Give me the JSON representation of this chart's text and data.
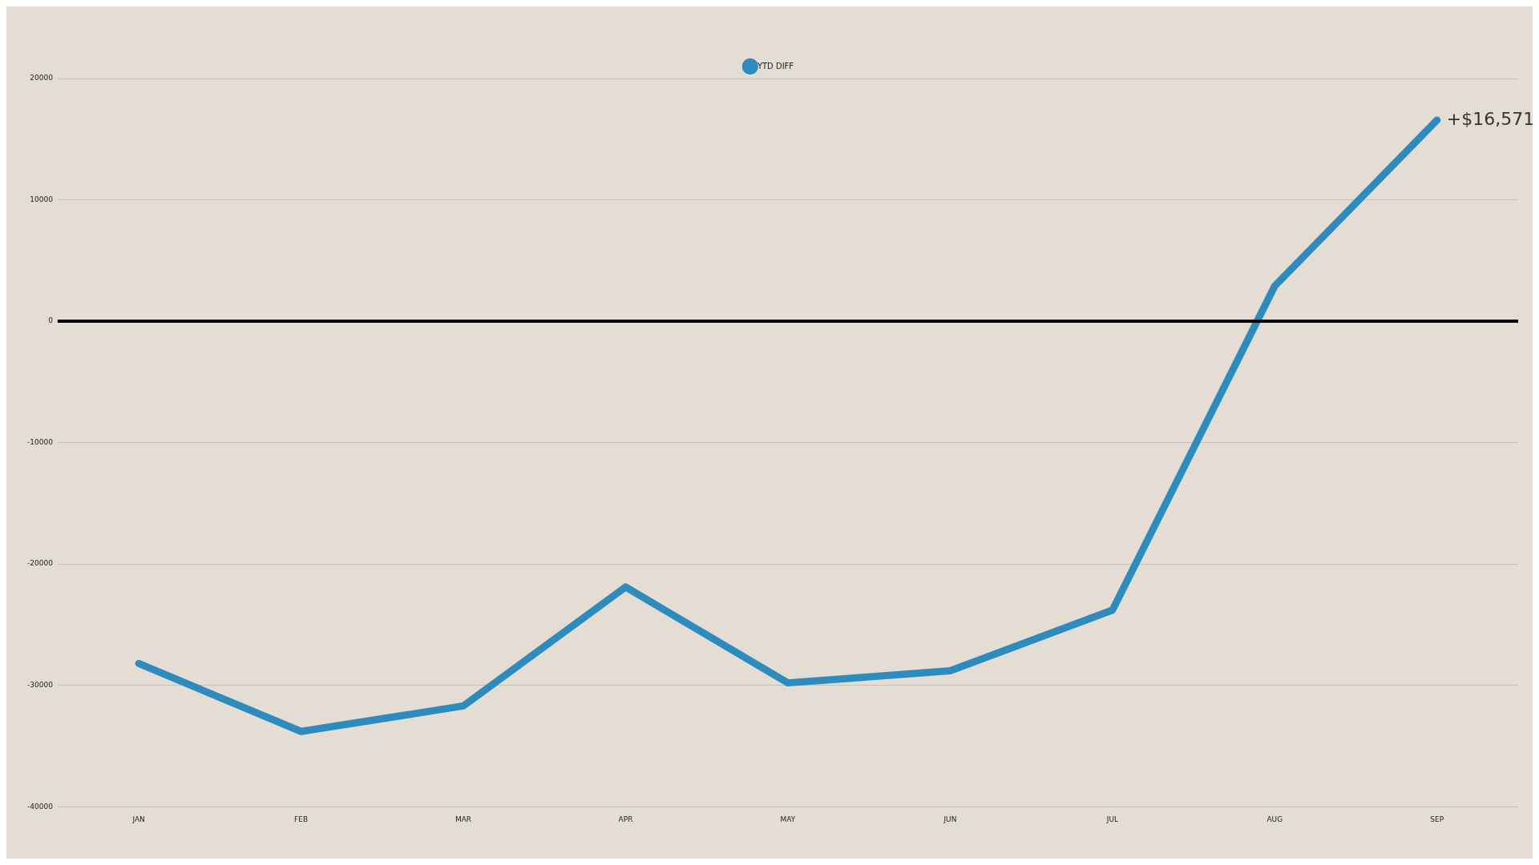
{
  "chart_data": {
    "type": "line",
    "categories": [
      "JAN",
      "FEB",
      "MAR",
      "APR",
      "MAY",
      "JUN",
      "JUL",
      "AUG",
      "SEP"
    ],
    "series": [
      {
        "name": "YTD DIFF",
        "color": "#2e8bbd",
        "values": [
          -28200,
          -33800,
          -31700,
          -21900,
          -29800,
          -28800,
          -23800,
          2900,
          16571
        ]
      }
    ],
    "ylim": [
      -40000,
      20000
    ],
    "yticks": [
      -40000,
      -30000,
      -20000,
      -10000,
      0,
      10000,
      20000
    ],
    "grid": "y",
    "legend": "top",
    "marker": "none",
    "line_style": "solid",
    "ref_lines": [
      {
        "axis": "y",
        "value": 0,
        "color": "#000000"
      }
    ],
    "annotations": [
      {
        "text": "+$16,571",
        "x": "SEP",
        "y": 16571
      }
    ]
  }
}
